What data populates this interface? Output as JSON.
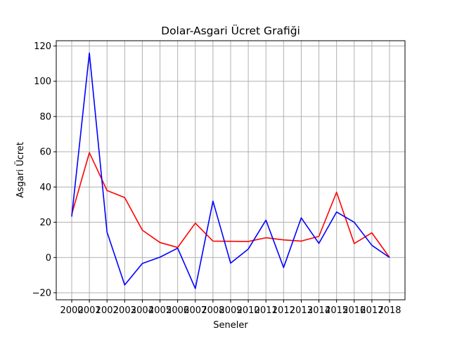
{
  "chart_data": {
    "type": "line",
    "title": "Dolar-Asgari Ücret Grafiği",
    "xlabel": "Seneler",
    "ylabel": "Asgari Ücret",
    "x": [
      2000,
      2001,
      2002,
      2003,
      2004,
      2005,
      2006,
      2007,
      2008,
      2009,
      2010,
      2011,
      2012,
      2013,
      2014,
      2015,
      2016,
      2017,
      2018
    ],
    "x_tick_labels": [
      "2000",
      "2001",
      "2002",
      "2003",
      "2004",
      "2005",
      "2006",
      "2007",
      "2008",
      "2009",
      "2010",
      "2011",
      "2012",
      "2013",
      "2014",
      "2015",
      "2016",
      "2017",
      "2018"
    ],
    "ylim": [
      -24,
      123
    ],
    "yticks": [
      -20,
      0,
      20,
      40,
      60,
      80,
      100,
      120
    ],
    "grid": true,
    "series": [
      {
        "color": "#ff0000",
        "values": [
          24.5,
          59.5,
          38.0,
          34.0,
          15.5,
          8.5,
          5.7,
          19.5,
          9.3,
          9.2,
          9.1,
          11.2,
          10.0,
          9.3,
          12.0,
          37.0,
          7.9,
          14.0,
          0.0
        ]
      },
      {
        "color": "#0000ff",
        "values": [
          23.2,
          116.0,
          14.4,
          -15.6,
          -3.4,
          0.2,
          5.3,
          -17.6,
          32.0,
          -3.2,
          4.8,
          21.2,
          -5.7,
          22.5,
          8.0,
          25.8,
          20.0,
          6.9,
          0.0
        ]
      }
    ]
  }
}
